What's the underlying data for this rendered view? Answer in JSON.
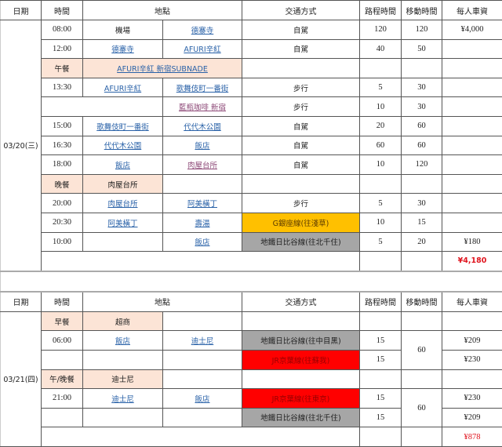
{
  "headers": [
    "日期",
    "時間",
    "地點",
    "交通方式",
    "路程時間",
    "移動時間",
    "每人車資"
  ],
  "colors": {
    "meal": "#fce4d6",
    "ginza_line": "#ffc000",
    "hibiya_line": "#a6a6a6",
    "jr_keiyo_line": "#ff0000",
    "total_text": "#e0141e",
    "link": "#2a62a8"
  },
  "day1": {
    "date": "03/20(三)",
    "rows": [
      [
        {
          "t": "08:00",
          "k": "num"
        },
        {
          "t": "機場"
        },
        {
          "t": "德寨寺",
          "k": "link"
        },
        {
          "t": "自駕"
        },
        {
          "t": "120",
          "k": "num"
        },
        {
          "t": "120",
          "k": "num"
        },
        {
          "t": "¥4,000",
          "k": "num"
        }
      ],
      [
        {
          "t": "12:00",
          "k": "num"
        },
        {
          "t": "德寨寺",
          "k": "link"
        },
        {
          "t": "AFURI辛紅",
          "k": "link"
        },
        {
          "t": "自駕"
        },
        {
          "t": "40",
          "k": "num"
        },
        {
          "t": "50",
          "k": "num"
        },
        {
          "t": ""
        }
      ],
      [
        {
          "t": "午餐",
          "k": "peach"
        },
        {
          "t": "AFURI辛紅 新宿SUBNADE",
          "k": "link peach",
          "cs": 2
        },
        {
          "t": ""
        },
        {
          "t": ""
        },
        {
          "t": ""
        },
        {
          "t": ""
        }
      ],
      [
        {
          "t": "13:30",
          "k": "num"
        },
        {
          "t": "AFURI辛紅",
          "k": "link"
        },
        {
          "t": "歌舞伎町一番街",
          "k": "link"
        },
        {
          "t": "步行"
        },
        {
          "t": "5",
          "k": "num"
        },
        {
          "t": "30",
          "k": "num"
        },
        {
          "t": ""
        }
      ],
      [
        {
          "t": "",
          "cs": 2
        },
        {
          "t": "藍瓶咖啡 新宿",
          "k": "visited"
        },
        {
          "t": "步行"
        },
        {
          "t": "10",
          "k": "num"
        },
        {
          "t": "30",
          "k": "num"
        },
        {
          "t": ""
        }
      ],
      [
        {
          "t": "15:00",
          "k": "num"
        },
        {
          "t": "歌舞伎町一番街",
          "k": "link"
        },
        {
          "t": "代代木公園",
          "k": "link"
        },
        {
          "t": "自駕"
        },
        {
          "t": "20",
          "k": "num"
        },
        {
          "t": "60",
          "k": "num"
        },
        {
          "t": ""
        }
      ],
      [
        {
          "t": "16:30",
          "k": "num"
        },
        {
          "t": "代代木公園",
          "k": "link"
        },
        {
          "t": "飯店",
          "k": "link"
        },
        {
          "t": "自駕"
        },
        {
          "t": "60",
          "k": "num"
        },
        {
          "t": "60",
          "k": "num"
        },
        {
          "t": ""
        }
      ],
      [
        {
          "t": "18:00",
          "k": "num"
        },
        {
          "t": "飯店",
          "k": "link"
        },
        {
          "t": "肉屋台所",
          "k": "visited"
        },
        {
          "t": "自駕"
        },
        {
          "t": "10",
          "k": "num"
        },
        {
          "t": "120",
          "k": "num"
        },
        {
          "t": ""
        }
      ],
      [
        {
          "t": "晚餐",
          "k": "peach"
        },
        {
          "t": "肉屋台所",
          "k": "peach"
        },
        {
          "t": ""
        },
        {
          "t": ""
        },
        {
          "t": ""
        },
        {
          "t": ""
        },
        {
          "t": ""
        }
      ],
      [
        {
          "t": "20:00",
          "k": "num"
        },
        {
          "t": "肉屋台所",
          "k": "link"
        },
        {
          "t": "阿美橫丁",
          "k": "link"
        },
        {
          "t": "步行"
        },
        {
          "t": "5",
          "k": "num"
        },
        {
          "t": "30",
          "k": "num"
        },
        {
          "t": ""
        }
      ],
      [
        {
          "t": "20:30",
          "k": "num"
        },
        {
          "t": "阿美橫丁",
          "k": "link"
        },
        {
          "t": "壽湯",
          "k": "link"
        },
        {
          "t": "G銀座線(往淺草)",
          "k": "yellow"
        },
        {
          "t": "10",
          "k": "num"
        },
        {
          "t": "15",
          "k": "num"
        },
        {
          "t": ""
        }
      ],
      [
        {
          "t": "10:00",
          "k": "num"
        },
        {
          "t": ""
        },
        {
          "t": "飯店",
          "k": "link"
        },
        {
          "t": "地鐵日比谷線(往北千住)",
          "k": "gray"
        },
        {
          "t": "5",
          "k": "num"
        },
        {
          "t": "20",
          "k": "num"
        },
        {
          "t": "¥180",
          "k": "num"
        }
      ],
      [
        {
          "t": "",
          "cs": 4
        },
        {
          "t": ""
        },
        {
          "t": ""
        },
        {
          "t": "¥4,180",
          "k": "total"
        }
      ]
    ]
  },
  "day2": {
    "date": "03/21(四)",
    "rows": [
      [
        {
          "t": "早餐",
          "k": "peach"
        },
        {
          "t": "超商",
          "k": "peach"
        },
        {
          "t": ""
        },
        {
          "t": ""
        },
        {
          "t": ""
        },
        {
          "t": ""
        },
        {
          "t": ""
        }
      ],
      [
        {
          "t": "06:00",
          "k": "num"
        },
        {
          "t": "飯店",
          "k": "link"
        },
        {
          "t": "迪士尼",
          "k": "link"
        },
        {
          "t": "地鐵日比谷線(往中目黑)",
          "k": "gray"
        },
        {
          "t": "15",
          "k": "num"
        },
        {
          "t": "60",
          "k": "num",
          "rs": 2
        },
        {
          "t": "¥209",
          "k": "num"
        }
      ],
      [
        {
          "t": ""
        },
        {
          "t": ""
        },
        {
          "t": ""
        },
        {
          "t": "JR京葉線(往蘇我)",
          "k": "red"
        },
        {
          "t": "15",
          "k": "num"
        },
        {
          "t": "¥230",
          "k": "num"
        }
      ],
      [
        {
          "t": "午/晚餐",
          "k": "peach"
        },
        {
          "t": "迪士尼",
          "k": "peach"
        },
        {
          "t": ""
        },
        {
          "t": ""
        },
        {
          "t": ""
        },
        {
          "t": ""
        },
        {
          "t": ""
        }
      ],
      [
        {
          "t": "21:00",
          "k": "num"
        },
        {
          "t": "迪士尼",
          "k": "link"
        },
        {
          "t": "飯店",
          "k": "link"
        },
        {
          "t": "JR京葉線(往東京)",
          "k": "red"
        },
        {
          "t": "15",
          "k": "num"
        },
        {
          "t": "60",
          "k": "num",
          "rs": 2
        },
        {
          "t": "¥230",
          "k": "num"
        }
      ],
      [
        {
          "t": ""
        },
        {
          "t": ""
        },
        {
          "t": ""
        },
        {
          "t": "地鐵日比谷線(往北千住)",
          "k": "gray"
        },
        {
          "t": "15",
          "k": "num"
        },
        {
          "t": "¥209",
          "k": "num"
        }
      ],
      [
        {
          "t": "",
          "cs": 4
        },
        {
          "t": ""
        },
        {
          "t": ""
        },
        {
          "t": "¥878",
          "k": "totalplain num"
        }
      ]
    ]
  }
}
